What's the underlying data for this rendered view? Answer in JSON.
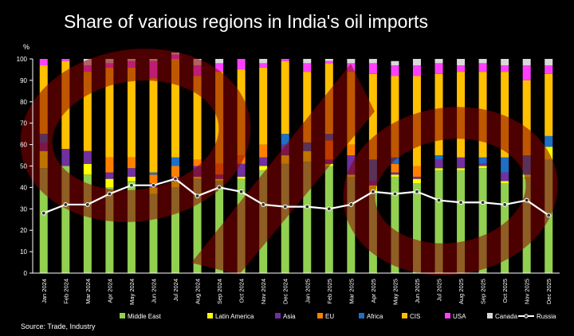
{
  "chart_data": {
    "type": "bar",
    "title": "Share of various regions in India's oil imports",
    "ylabel": "%",
    "xlabel": "",
    "ylim": [
      0,
      100
    ],
    "yticks": [
      0,
      10,
      20,
      30,
      40,
      50,
      60,
      70,
      80,
      90,
      100
    ],
    "stacked": true,
    "grid": false,
    "legend_position": "bottom",
    "categories": [
      "Jan 2024",
      "Feb 2024",
      "Mar 2024",
      "Apr 2024",
      "May 2024",
      "Jun 2024",
      "Jul 2024",
      "Aug 2024",
      "Sep 2024",
      "Oct 2024",
      "Nov 2024",
      "Dec 2024",
      "Jan 2025",
      "Feb 2025",
      "Mar 2025",
      "Apr 2025",
      "May 2025",
      "Jun 2025",
      "Jul 2025",
      "Aug 2025",
      "Sep 2025",
      "Oct 2025",
      "Nov 2025",
      "Dec 2025"
    ],
    "series": [
      {
        "name": "Middle East",
        "color": "#92d050",
        "values": [
          49,
          50,
          46,
          40,
          43,
          37,
          40,
          44,
          43,
          44,
          48,
          51,
          52,
          50,
          45,
          38,
          45,
          42,
          48,
          48,
          49,
          42,
          45,
          53
        ]
      },
      {
        "name": "Latin America",
        "color": "#ffff00",
        "values": [
          8,
          0,
          5,
          4,
          2,
          3,
          3,
          1,
          1,
          1,
          2,
          4,
          5,
          1,
          1,
          3,
          1,
          2,
          1,
          1,
          1,
          1,
          1,
          6
        ]
      },
      {
        "name": "Asia",
        "color": "#7030a0",
        "values": [
          4,
          8,
          6,
          3,
          4,
          2,
          2,
          5,
          2,
          6,
          4,
          5,
          0,
          2,
          9,
          2,
          1,
          1,
          4,
          5,
          1,
          4,
          0,
          0
        ]
      },
      {
        "name": "EU",
        "color": "#ff8000",
        "values": [
          0,
          0,
          0,
          7,
          5,
          4,
          5,
          3,
          5,
          4,
          6,
          0,
          0,
          9,
          5,
          0,
          4,
          5,
          0,
          0,
          0,
          0,
          0,
          0
        ]
      },
      {
        "name": "Africa",
        "color": "#1f6fc5",
        "values": [
          4,
          0,
          0,
          0,
          0,
          1,
          4,
          0,
          0,
          0,
          0,
          5,
          4,
          3,
          0,
          10,
          3,
          0,
          2,
          0,
          3,
          7,
          9,
          5
        ]
      },
      {
        "name": "CIS",
        "color": "#ffc000",
        "values": [
          32,
          41,
          37,
          42,
          42,
          44,
          46,
          39,
          43,
          40,
          36,
          34,
          33,
          33,
          34,
          40,
          38,
          42,
          38,
          40,
          40,
          40,
          35,
          29
        ]
      },
      {
        "name": "USA",
        "color": "#ff40ff",
        "values": [
          3,
          1,
          3,
          2,
          3,
          8,
          2,
          5,
          4,
          5,
          2,
          1,
          4,
          1,
          4,
          5,
          5,
          5,
          5,
          3,
          4,
          3,
          7,
          4
        ]
      },
      {
        "name": "Canada",
        "color": "#d9d9d9",
        "values": [
          0,
          0,
          3,
          2,
          1,
          1,
          1,
          3,
          2,
          0,
          2,
          0,
          2,
          1,
          2,
          2,
          2,
          3,
          2,
          3,
          2,
          3,
          3,
          3
        ]
      }
    ],
    "line_series": {
      "name": "Russia",
      "color": "#ffffff",
      "values": [
        28,
        32,
        32,
        37,
        41,
        41,
        44,
        36,
        40,
        38,
        32,
        31,
        31,
        30,
        32,
        38,
        37,
        38,
        34,
        33,
        33,
        32,
        34,
        27
      ]
    },
    "source": "Source: Trade, Industry"
  }
}
